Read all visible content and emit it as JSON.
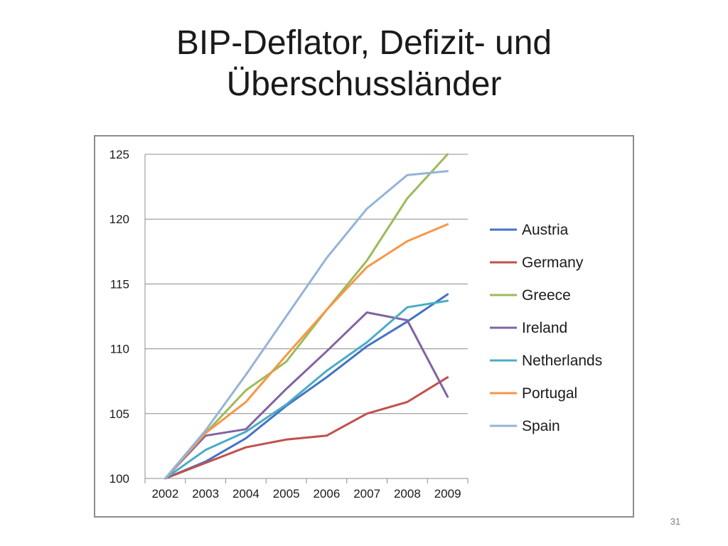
{
  "slide": {
    "title_lines": [
      "BIP-Deflator, Defizit- und",
      "Überschussländer"
    ],
    "page_number": "31"
  },
  "chart_data": {
    "type": "line",
    "title": "",
    "xlabel": "",
    "ylabel": "",
    "x": [
      "2002",
      "2003",
      "2004",
      "2005",
      "2006",
      "2007",
      "2008",
      "2009"
    ],
    "ylim": [
      100,
      125
    ],
    "yticks": [
      100,
      105,
      110,
      115,
      120,
      125
    ],
    "grid": "horizontal",
    "legend": "right",
    "series": [
      {
        "name": "Austria",
        "color": "#4472c4",
        "values": [
          100,
          101.3,
          103.1,
          105.6,
          107.8,
          110.2,
          112.1,
          114.2
        ]
      },
      {
        "name": "Germany",
        "color": "#c0504d",
        "values": [
          100,
          101.2,
          102.4,
          103.0,
          103.3,
          105.0,
          105.9,
          107.8
        ]
      },
      {
        "name": "Greece",
        "color": "#9bbb59",
        "values": [
          100,
          103.5,
          106.8,
          109.0,
          113.0,
          116.8,
          121.6,
          125.0
        ]
      },
      {
        "name": "Ireland",
        "color": "#8064a2",
        "values": [
          100,
          103.3,
          103.8,
          106.9,
          109.8,
          112.8,
          112.2,
          106.3
        ]
      },
      {
        "name": "Netherlands",
        "color": "#4bacc6",
        "values": [
          100,
          102.2,
          103.6,
          105.7,
          108.3,
          110.5,
          113.2,
          113.7
        ]
      },
      {
        "name": "Portugal",
        "color": "#f79646",
        "values": [
          100,
          103.5,
          105.9,
          109.5,
          113.0,
          116.3,
          118.3,
          119.6
        ]
      },
      {
        "name": "Spain",
        "color": "#95b3d7",
        "values": [
          100,
          103.7,
          108.0,
          112.5,
          117.0,
          120.8,
          123.4,
          123.7
        ]
      }
    ]
  }
}
